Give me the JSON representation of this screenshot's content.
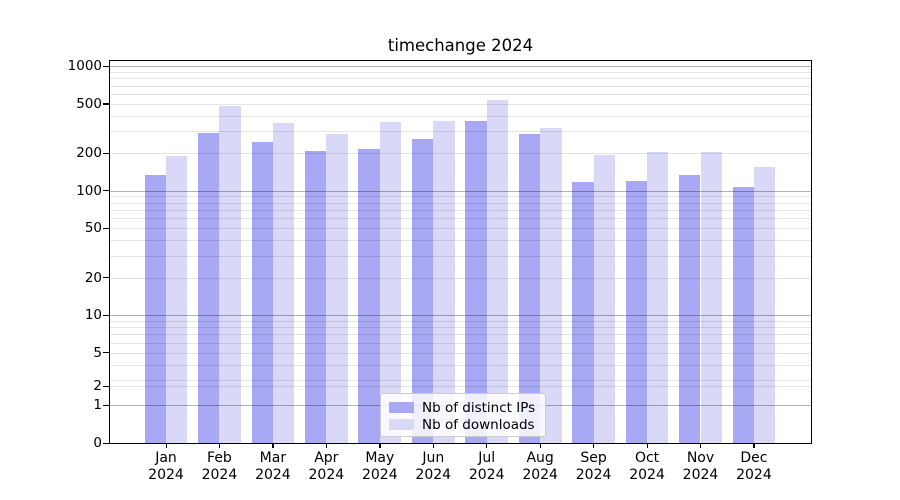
{
  "chart": {
    "title": "timechange 2024"
  },
  "chart_data": {
    "type": "bar",
    "title": "timechange 2024",
    "categories": [
      "Jan",
      "Feb",
      "Mar",
      "Apr",
      "May",
      "Jun",
      "Jul",
      "Aug",
      "Sep",
      "Oct",
      "Nov",
      "Dec"
    ],
    "x_tick_label_line2": "2024",
    "series": [
      {
        "name": "Nb of distinct IPs",
        "color": "#a8a8f4",
        "values": [
          133,
          289,
          246,
          207,
          215,
          262,
          366,
          284,
          118,
          119,
          134,
          108
        ]
      },
      {
        "name": "Nb of downloads",
        "color": "#d9d9f7",
        "values": [
          191,
          477,
          350,
          286,
          356,
          364,
          534,
          322,
          193,
          204,
          206,
          156
        ]
      }
    ],
    "yscale": "symlog",
    "ytick_labels": [
      "1000",
      "500",
      "200",
      "100",
      "50",
      "20",
      "10",
      "5",
      "2",
      "1",
      "0"
    ],
    "ylim": [
      0,
      1100
    ],
    "grid": true,
    "legend_position": "lower center"
  }
}
